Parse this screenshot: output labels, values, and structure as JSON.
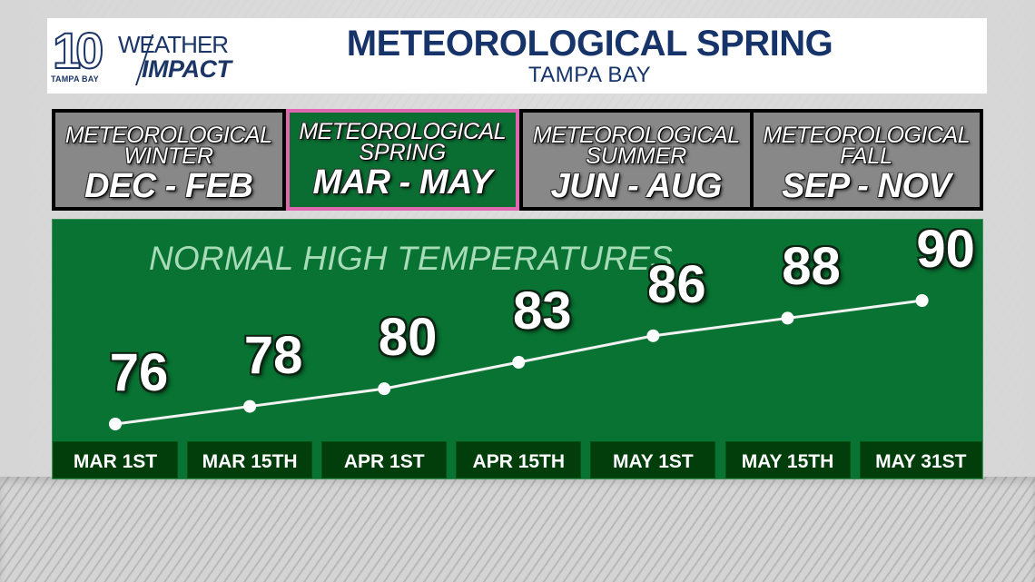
{
  "header": {
    "logo": {
      "number": "10",
      "station": "TAMPA BAY",
      "brand_top": "WEATHER",
      "brand_bottom": "IMPACT"
    },
    "title": "METEOROLOGICAL SPRING",
    "subtitle": "TAMPA BAY"
  },
  "seasons": [
    {
      "line1": "METEOROLOGICAL",
      "line2": "WINTER",
      "months": "DEC - FEB",
      "active": false
    },
    {
      "line1": "METEOROLOGICAL",
      "line2": "SPRING",
      "months": "MAR - MAY",
      "active": true
    },
    {
      "line1": "METEOROLOGICAL",
      "line2": "SUMMER",
      "months": "JUN - AUG",
      "active": false
    },
    {
      "line1": "METEOROLOGICAL",
      "line2": "FALL",
      "months": "SEP - NOV",
      "active": false
    }
  ],
  "colors": {
    "brand_navy": "#16346a",
    "chart_green": "#087332",
    "date_box_green": "#013e0b",
    "active_border_pink": "#e066b0",
    "inactive_gray": "#888888",
    "title_mint": "#a8dcb8"
  },
  "chart_data": {
    "type": "line",
    "title": "NORMAL HIGH TEMPERATURES",
    "xlabel": "",
    "ylabel": "",
    "categories": [
      "MAR 1ST",
      "MAR 15TH",
      "APR 1ST",
      "APR 15TH",
      "MAY 1ST",
      "MAY 15TH",
      "MAY 31ST"
    ],
    "values": [
      76,
      78,
      80,
      83,
      86,
      88,
      90
    ],
    "series": [
      {
        "name": "Normal High Temperature (°F)",
        "values": [
          76,
          78,
          80,
          83,
          86,
          88,
          90
        ]
      }
    ],
    "data_labels": [
      "76",
      "78",
      "80",
      "83",
      "86",
      "88",
      "90"
    ],
    "grid": false,
    "legend": "none",
    "location": "TAMPA BAY"
  }
}
